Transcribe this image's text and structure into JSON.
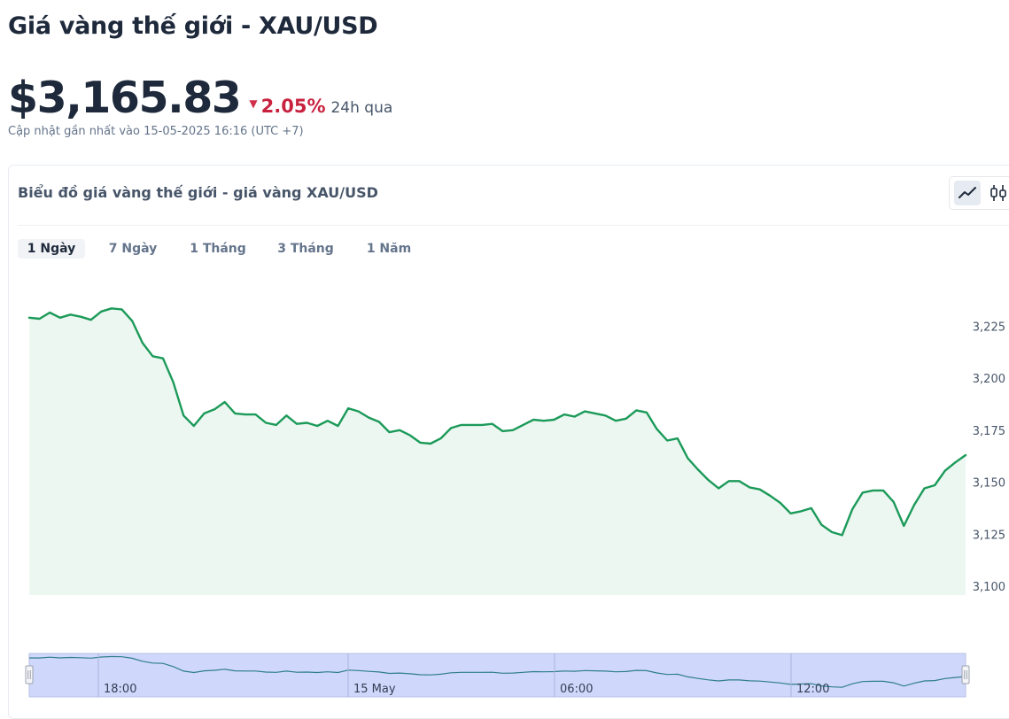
{
  "header": {
    "title": "Giá vàng thế giới - XAU/USD",
    "price": "$3,165.83",
    "change_arrow": "▼",
    "change_pct": "2.05%",
    "change_period": "24h qua",
    "updated": "Cập nhật gần nhất vào 15-05-2025 16:16 (UTC +7)"
  },
  "card": {
    "title": "Biểu đồ giá vàng thế giới - giá vàng XAU/USD",
    "chart_types": [
      {
        "icon": "line-chart-icon",
        "active": true
      },
      {
        "icon": "candlestick-chart-icon",
        "active": false
      }
    ],
    "tabs": [
      {
        "label": "1 Ngày",
        "active": true
      },
      {
        "label": "7 Ngày",
        "active": false
      },
      {
        "label": "1 Tháng",
        "active": false
      },
      {
        "label": "3 Tháng",
        "active": false
      },
      {
        "label": "1 Năm",
        "active": false
      }
    ]
  },
  "colors": {
    "line": "#1b9a59",
    "area": "#edf7f1",
    "negative": "#c8223f",
    "navigator_fill": "#cfd7fb",
    "navigator_line": "#2f7e8c"
  },
  "chart_data": {
    "type": "area",
    "ylim": [
      3100,
      3232
    ],
    "y_ticks": [
      3100,
      3125,
      3150,
      3175,
      3200,
      3225
    ],
    "y_tick_labels": [
      "3,100",
      "3,125",
      "3,150",
      "3,175",
      "3,200",
      "3,225"
    ],
    "grid": false,
    "navigator_labels": [
      "18:00",
      "15 May",
      "06:00",
      "12:00"
    ],
    "values": [
      3229,
      3228.5,
      3231.5,
      3229,
      3230.5,
      3229.5,
      3228,
      3232,
      3233.5,
      3233,
      3227.5,
      3217,
      3210.5,
      3209.5,
      3198,
      3182,
      3177,
      3183,
      3185,
      3188.5,
      3183,
      3182.5,
      3182.5,
      3178.5,
      3177.5,
      3182,
      3178,
      3178.5,
      3177,
      3179.5,
      3177,
      3185.5,
      3184,
      3181,
      3179,
      3174,
      3175,
      3172.5,
      3169,
      3168.5,
      3171,
      3176,
      3177.5,
      3177.5,
      3177.5,
      3178,
      3174.5,
      3175,
      3177.5,
      3180,
      3179.5,
      3180,
      3182.5,
      3181.5,
      3184,
      3183,
      3182,
      3179.5,
      3180.5,
      3184.5,
      3183.5,
      3175.5,
      3170,
      3171,
      3161.5,
      3156,
      3151,
      3147,
      3150.5,
      3150.5,
      3147.5,
      3146.5,
      3143.5,
      3140,
      3135,
      3136,
      3137.5,
      3129.5,
      3126,
      3124.5,
      3137,
      3145,
      3146,
      3146,
      3140.5,
      3129,
      3139,
      3147,
      3148.5,
      3155.5,
      3159.5,
      3163
    ]
  }
}
